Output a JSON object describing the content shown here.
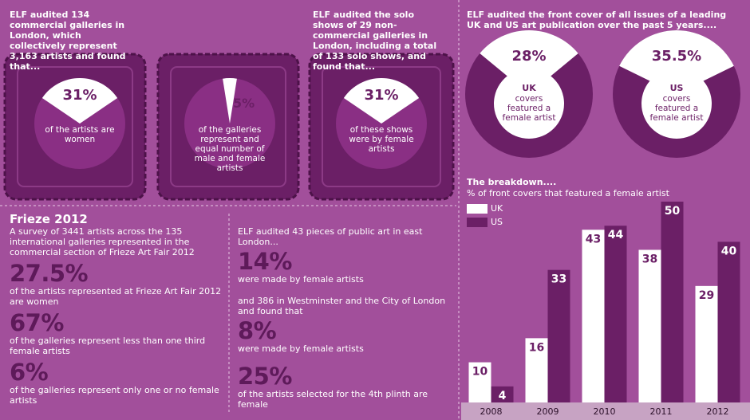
{
  "intro_galleries": "ELF audited 134 commercial galleries in London, which collectively represent 3,163 artists and found that...",
  "intro_solo": "ELF audited the solo shows of 29 non-commercial galleries in London, including a total of 133 solo shows, and found that...",
  "intro_covers": "ELF audited the front cover of all issues of a leading UK and US  art publication over the past 5 years....",
  "chart_data": [
    {
      "type": "pie",
      "values": [
        31
      ],
      "value_labels": [
        "31%"
      ],
      "color": "#ffffff",
      "caption": "of the artists are women"
    },
    {
      "type": "pie",
      "values": [
        5
      ],
      "value_labels": [
        "5%"
      ],
      "color": "#ffffff",
      "caption": "of the galleries represent and equal number of male and female artists"
    },
    {
      "type": "pie",
      "values": [
        31
      ],
      "value_labels": [
        "31%"
      ],
      "color": "#ffffff",
      "caption": "of these shows were by female artists"
    },
    {
      "type": "donut",
      "values": [
        28
      ],
      "value_labels": [
        "28%"
      ],
      "color": "#ffffff",
      "label": "UK",
      "caption": "covers featured a female artist"
    },
    {
      "type": "donut",
      "values": [
        35.5
      ],
      "value_labels": [
        "35.5%"
      ],
      "color": "#ffffff",
      "label": "US",
      "caption": "covers featured a female artist"
    },
    {
      "type": "bar",
      "title": "The breakdown....",
      "subtitle": "% of front covers that featured a female artist",
      "categories": [
        "2008",
        "2009",
        "2010",
        "2011",
        "2012"
      ],
      "series": [
        {
          "name": "UK",
          "color": "#ffffff",
          "values": [
            10,
            16,
            43,
            38,
            29
          ]
        },
        {
          "name": "US",
          "color": "#6b1f66",
          "values": [
            4,
            33,
            44,
            50,
            40
          ]
        }
      ]
    }
  ],
  "frieze": {
    "title": "Frieze 2012",
    "intro": "A survey of 3441 artists across the 135 international galleries represented in the commercial section of Frieze Art Fair 2012",
    "stats": [
      {
        "figure": "27.5%",
        "text": "of the artists represented at Frieze Art Fair 2012 are women"
      },
      {
        "figure": "67%",
        "text": "of the galleries represent less than one third female artists"
      },
      {
        "figure": "6%",
        "text": "of the galleries represent only one or no female artists"
      }
    ]
  },
  "public_art": {
    "intro": "ELF audited 43 pieces of public art in east London...",
    "stats": [
      {
        "figure": "14%",
        "text": "were made by female artists"
      },
      {
        "intro": "and 386  in Westminster and the City of London and found that",
        "figure": "8%",
        "text": "were made by female artists"
      },
      {
        "figure": "25%",
        "text": "of the artists selected for the 4th plinth are female"
      }
    ]
  }
}
